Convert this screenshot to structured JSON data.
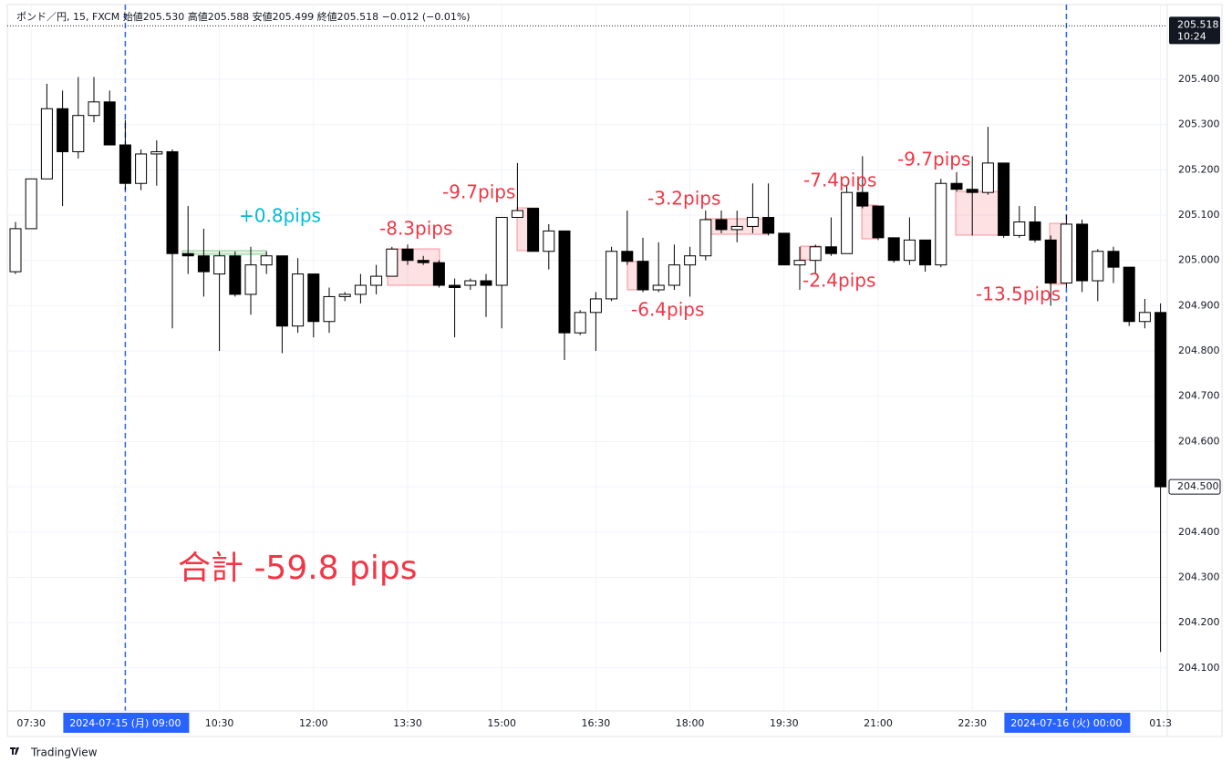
{
  "chart_data": {
    "type": "candlestick",
    "header": "ポンド／円, 15, FXCM  始値205.530 高値205.588 安値205.499 終値205.518 −0.012 (−0.01%)",
    "categories": [
      null,
      "07:30",
      null,
      null,
      null,
      null,
      null,
      "2024-07-15 (月)  09:00",
      null,
      null,
      null,
      null,
      null,
      "10:30",
      null,
      null,
      null,
      null,
      null,
      "12:00",
      null,
      null,
      null,
      null,
      null,
      "13:30",
      null,
      null,
      null,
      null,
      null,
      "15:00",
      null,
      null,
      null,
      null,
      null,
      "16:30",
      null,
      null,
      null,
      null,
      null,
      "18:00",
      null,
      null,
      null,
      null,
      null,
      "19:30",
      null,
      null,
      null,
      null,
      null,
      "21:00",
      null,
      null,
      null,
      null,
      null,
      "22:30",
      null,
      null,
      null,
      null,
      null,
      "2024-07-16 (火)  00:00",
      null,
      null,
      null,
      null,
      null,
      "01:3"
    ],
    "session_breaks": [
      7,
      67
    ],
    "open": [
      204.975,
      205.07,
      205.18,
      205.335,
      205.24,
      205.32,
      205.35,
      205.255,
      205.17,
      205.235,
      205.24,
      205.015,
      205.01,
      204.97,
      205.01,
      204.925,
      204.99,
      205.01,
      204.855,
      204.97,
      204.865,
      204.92,
      204.925,
      204.945,
      204.965,
      205.025,
      205.0,
      204.995,
      204.945,
      204.945,
      204.955,
      204.945,
      205.095,
      205.115,
      205.02,
      205.065,
      204.84,
      204.885,
      204.915,
      205.02,
      204.998,
      204.935,
      204.945,
      204.99,
      205.01,
      205.09,
      205.068,
      205.075,
      205.095,
      205.06,
      204.99,
      205.0,
      205.03,
      205.015,
      205.15,
      205.12,
      205.05,
      205.0,
      205.045,
      204.99,
      205.17,
      205.157,
      205.15,
      205.215,
      205.055,
      205.085,
      205.045,
      204.95,
      205.08,
      204.955,
      205.02,
      204.985,
      204.865,
      204.885
    ],
    "high": [
      205.085,
      205.18,
      205.39,
      205.375,
      205.405,
      205.405,
      205.375,
      205.31,
      205.245,
      205.265,
      205.245,
      205.12,
      205.07,
      205.02,
      205.02,
      205.03,
      205.02,
      205.01,
      205.005,
      204.97,
      204.94,
      204.93,
      204.97,
      204.99,
      205.03,
      205.035,
      205.01,
      205.0,
      204.96,
      204.96,
      204.97,
      205.095,
      205.215,
      205.115,
      205.08,
      205.065,
      204.89,
      204.93,
      205.03,
      205.11,
      205.05,
      205.04,
      205.035,
      205.03,
      205.11,
      205.11,
      205.11,
      205.17,
      205.17,
      205.06,
      205.03,
      205.035,
      205.095,
      205.165,
      205.23,
      205.12,
      205.05,
      205.095,
      205.045,
      205.18,
      205.195,
      205.23,
      205.295,
      205.215,
      205.12,
      205.12,
      205.055,
      205.1,
      205.09,
      205.025,
      205.03,
      204.985,
      204.915,
      204.905
    ],
    "low": [
      204.97,
      205.07,
      205.18,
      205.12,
      205.225,
      205.305,
      205.255,
      205.155,
      205.155,
      205.165,
      204.85,
      204.97,
      204.92,
      204.8,
      204.92,
      204.88,
      204.97,
      204.795,
      204.84,
      204.83,
      204.84,
      204.91,
      204.905,
      204.925,
      204.965,
      204.99,
      204.99,
      204.94,
      204.83,
      204.935,
      204.875,
      204.85,
      205.095,
      205.02,
      204.98,
      204.78,
      204.835,
      204.8,
      204.91,
      204.99,
      204.93,
      204.93,
      204.935,
      204.92,
      205.0,
      205.06,
      205.04,
      205.06,
      205.055,
      204.99,
      204.935,
      204.97,
      205.01,
      205.015,
      205.115,
      205.045,
      204.995,
      204.99,
      204.975,
      204.985,
      205.152,
      205.055,
      205.145,
      205.05,
      205.05,
      205.04,
      204.9,
      204.94,
      204.93,
      204.91,
      204.95,
      204.855,
      204.85,
      204.135
    ],
    "close": [
      205.07,
      205.18,
      205.335,
      205.24,
      205.32,
      205.35,
      205.255,
      205.17,
      205.235,
      205.24,
      205.015,
      205.01,
      204.975,
      205.01,
      204.925,
      204.99,
      205.01,
      204.855,
      204.97,
      204.865,
      204.92,
      204.925,
      204.945,
      204.965,
      205.025,
      205.0,
      204.995,
      204.945,
      204.94,
      204.955,
      204.945,
      205.095,
      205.11,
      205.02,
      205.065,
      204.84,
      204.885,
      204.915,
      205.02,
      204.998,
      204.935,
      204.945,
      204.99,
      205.01,
      205.09,
      205.068,
      205.075,
      205.095,
      205.06,
      204.99,
      205.0,
      205.03,
      205.015,
      205.15,
      205.12,
      205.05,
      205.0,
      205.045,
      204.99,
      205.17,
      205.157,
      205.15,
      205.215,
      205.055,
      205.085,
      205.045,
      204.95,
      205.08,
      204.955,
      205.02,
      204.985,
      204.865,
      204.885,
      204.5
    ],
    "up_color": "#ffffff",
    "down_color": "#000000",
    "ylim": [
      204.005,
      205.565
    ],
    "yticks": [
      {
        "value": 204.1,
        "label": "204.100"
      },
      {
        "value": 204.2,
        "label": "204.200"
      },
      {
        "value": 204.3,
        "label": "204.300"
      },
      {
        "value": 204.4,
        "label": "204.400"
      },
      {
        "value": 204.5,
        "label": "204.500"
      },
      {
        "value": 204.6,
        "label": "204.600"
      },
      {
        "value": 204.7,
        "label": "204.700"
      },
      {
        "value": 204.8,
        "label": "204.800"
      },
      {
        "value": 204.9,
        "label": "204.900"
      },
      {
        "value": 205.0,
        "label": "205.000"
      },
      {
        "value": 205.1,
        "label": "205.100"
      },
      {
        "value": 205.2,
        "label": "205.200"
      },
      {
        "value": 205.3,
        "label": "205.300"
      },
      {
        "value": 205.4,
        "label": "205.400"
      }
    ],
    "grid": true,
    "last_price": 205.518,
    "last_time": "10:24",
    "marker_price": {
      "value": 204.5,
      "label": "204.500"
    },
    "annotations": [
      {
        "text": "+0.8pips",
        "color": "#00bcd4"
      },
      {
        "text": "-8.3pips",
        "color": "#f23645"
      },
      {
        "text": "-9.7pips",
        "color": "#f23645"
      },
      {
        "text": "-6.4pips",
        "color": "#f23645"
      },
      {
        "text": "-3.2pips",
        "color": "#f23645"
      },
      {
        "text": "-2.4pips",
        "color": "#f23645"
      },
      {
        "text": "-7.4pips",
        "color": "#f23645"
      },
      {
        "text": "-9.7pips",
        "color": "#f23645"
      },
      {
        "text": "-13.5pips",
        "color": "#f23645"
      }
    ],
    "total": {
      "text": "合計 -59.8 pips",
      "color": "#f23645"
    },
    "watermark": "TradingView"
  }
}
